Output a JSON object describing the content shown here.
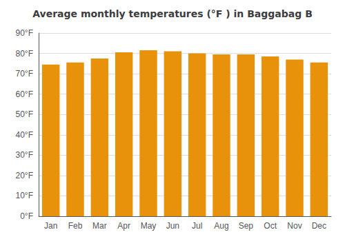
{
  "chart_data": {
    "type": "bar",
    "title": "Average monthly temperatures (°F ) in Baggabag B",
    "categories": [
      "Jan",
      "Feb",
      "Mar",
      "Apr",
      "May",
      "Jun",
      "Jul",
      "Aug",
      "Sep",
      "Oct",
      "Nov",
      "Dec"
    ],
    "values": [
      74.5,
      75.5,
      77.5,
      80.5,
      81.5,
      81.0,
      80.0,
      79.5,
      79.5,
      78.5,
      77.0,
      75.5
    ],
    "color": "#E8910A",
    "ylim": [
      0,
      90
    ],
    "yticks": [
      {
        "value": 0,
        "label": "0°F"
      },
      {
        "value": 10,
        "label": "10°F"
      },
      {
        "value": 20,
        "label": "20°F"
      },
      {
        "value": 30,
        "label": "30°F"
      },
      {
        "value": 40,
        "label": "40°F"
      },
      {
        "value": 50,
        "label": "50°F"
      },
      {
        "value": 60,
        "label": "60°F"
      },
      {
        "value": 70,
        "label": "70°F"
      },
      {
        "value": 80,
        "label": "80°F"
      },
      {
        "value": 90,
        "label": "90°F"
      }
    ],
    "grid": true
  }
}
